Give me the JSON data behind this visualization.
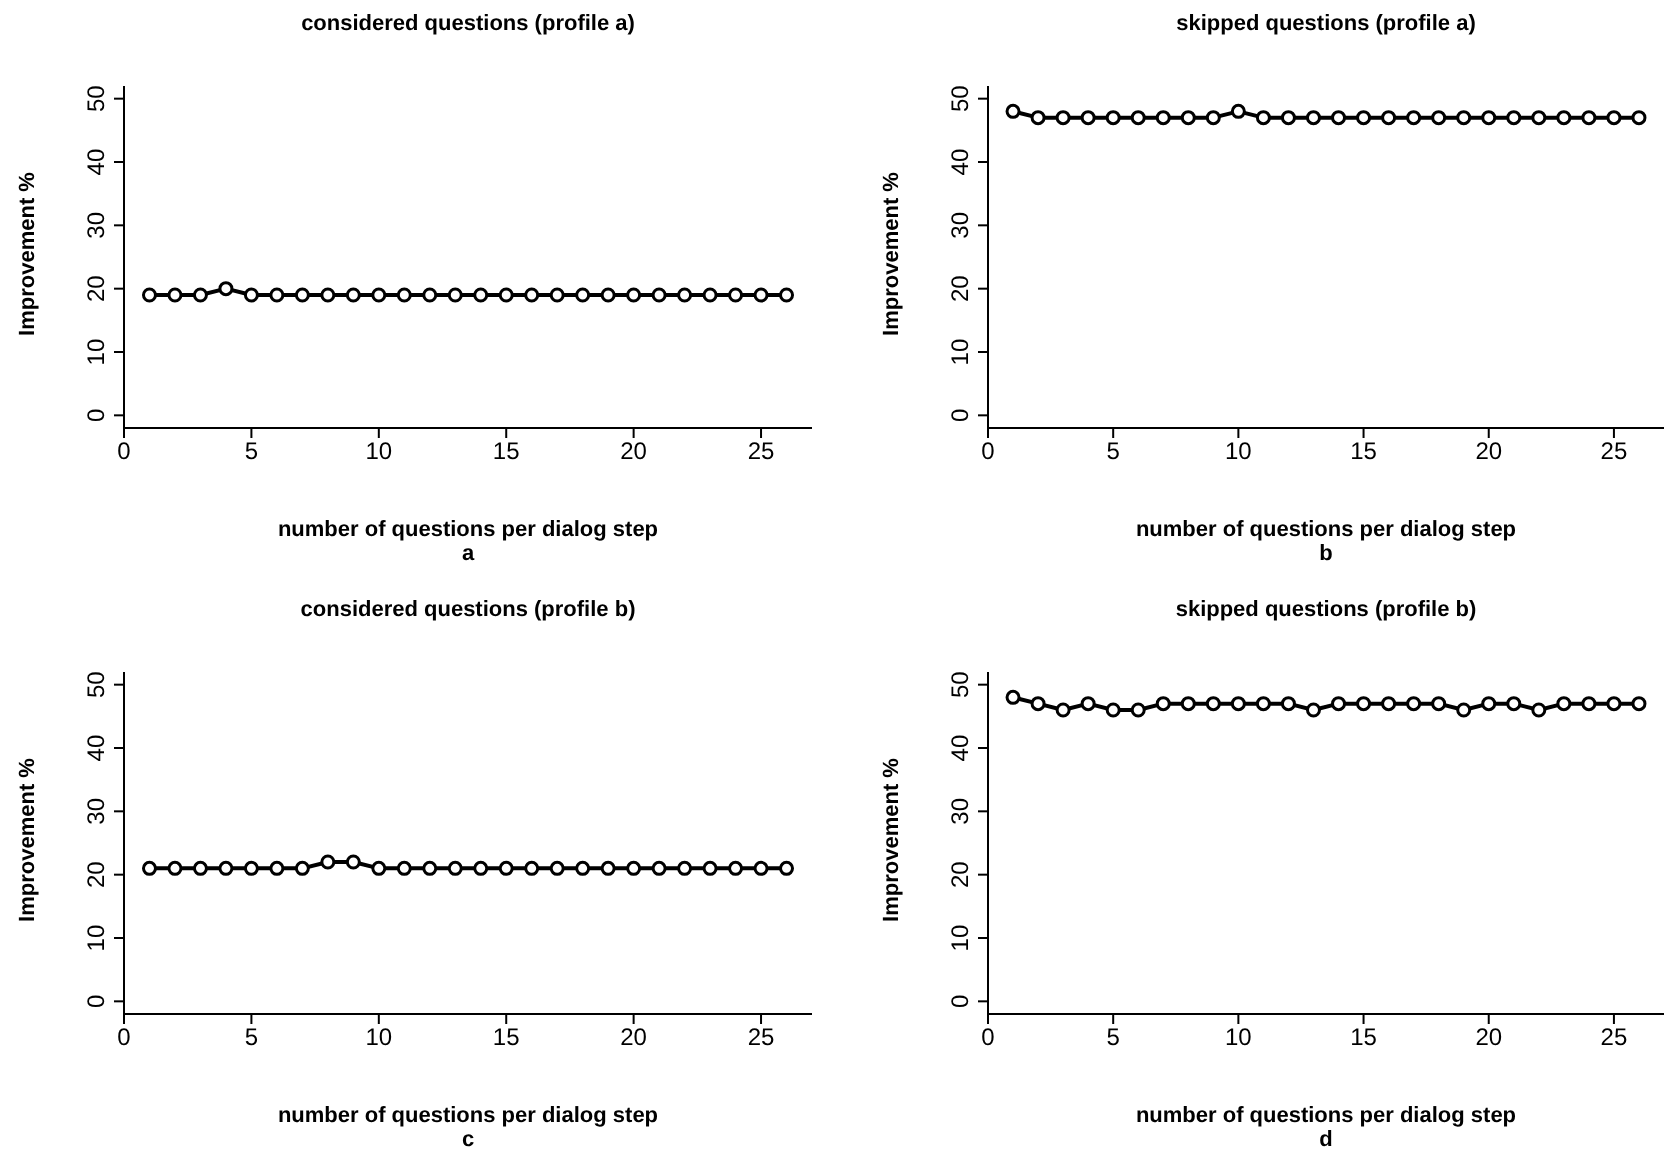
{
  "chart_data": [
    {
      "type": "line",
      "title": "considered questions (profile a)",
      "xlabel": "number of questions per dialog step",
      "ylabel": "Improvement %",
      "annotations": [
        "a"
      ],
      "x": [
        1,
        2,
        3,
        4,
        5,
        6,
        7,
        8,
        9,
        10,
        11,
        12,
        13,
        14,
        15,
        16,
        17,
        18,
        19,
        20,
        21,
        22,
        23,
        24,
        25,
        26
      ],
      "series": [
        {
          "color": "#000000",
          "values": [
            19,
            19,
            19,
            20,
            19,
            19,
            19,
            19,
            19,
            19,
            19,
            19,
            19,
            19,
            19,
            19,
            19,
            19,
            19,
            19,
            19,
            19,
            19,
            19,
            19,
            19
          ]
        }
      ],
      "xlim": [
        0,
        27
      ],
      "ylim": [
        -2,
        52
      ],
      "xticks": [
        0,
        5,
        10,
        15,
        20,
        25
      ],
      "yticks": [
        0,
        10,
        20,
        30,
        40,
        50
      ],
      "marker": "circle",
      "line_style": "solid"
    },
    {
      "type": "line",
      "title": "skipped questions (profile a)",
      "xlabel": "number of questions per dialog step",
      "ylabel": "Improvement %",
      "annotations": [
        "b"
      ],
      "x": [
        1,
        2,
        3,
        4,
        5,
        6,
        7,
        8,
        9,
        10,
        11,
        12,
        13,
        14,
        15,
        16,
        17,
        18,
        19,
        20,
        21,
        22,
        23,
        24,
        25,
        26
      ],
      "series": [
        {
          "color": "#000000",
          "values": [
            48,
            47,
            47,
            47,
            47,
            47,
            47,
            47,
            47,
            48,
            47,
            47,
            47,
            47,
            47,
            47,
            47,
            47,
            47,
            47,
            47,
            47,
            47,
            47,
            47,
            47
          ]
        }
      ],
      "xlim": [
        0,
        27
      ],
      "ylim": [
        -2,
        52
      ],
      "xticks": [
        0,
        5,
        10,
        15,
        20,
        25
      ],
      "yticks": [
        0,
        10,
        20,
        30,
        40,
        50
      ],
      "marker": "circle",
      "line_style": "solid"
    },
    {
      "type": "line",
      "title": "considered questions (profile b)",
      "xlabel": "number of questions per dialog step",
      "ylabel": "Improvement %",
      "annotations": [
        "c"
      ],
      "x": [
        1,
        2,
        3,
        4,
        5,
        6,
        7,
        8,
        9,
        10,
        11,
        12,
        13,
        14,
        15,
        16,
        17,
        18,
        19,
        20,
        21,
        22,
        23,
        24,
        25,
        26
      ],
      "series": [
        {
          "color": "#000000",
          "values": [
            21,
            21,
            21,
            21,
            21,
            21,
            21,
            22,
            22,
            21,
            21,
            21,
            21,
            21,
            21,
            21,
            21,
            21,
            21,
            21,
            21,
            21,
            21,
            21,
            21,
            21
          ]
        }
      ],
      "xlim": [
        0,
        27
      ],
      "ylim": [
        -2,
        52
      ],
      "xticks": [
        0,
        5,
        10,
        15,
        20,
        25
      ],
      "yticks": [
        0,
        10,
        20,
        30,
        40,
        50
      ],
      "marker": "circle",
      "line_style": "solid"
    },
    {
      "type": "line",
      "title": "skipped questions (profile b)",
      "xlabel": "number of questions per dialog step",
      "ylabel": "Improvement %",
      "annotations": [
        "d"
      ],
      "x": [
        1,
        2,
        3,
        4,
        5,
        6,
        7,
        8,
        9,
        10,
        11,
        12,
        13,
        14,
        15,
        16,
        17,
        18,
        19,
        20,
        21,
        22,
        23,
        24,
        25,
        26
      ],
      "series": [
        {
          "color": "#000000",
          "values": [
            48,
            47,
            46,
            47,
            46,
            46,
            47,
            47,
            47,
            47,
            47,
            47,
            46,
            47,
            47,
            47,
            47,
            47,
            46,
            47,
            47,
            46,
            47,
            47,
            47,
            47
          ]
        }
      ],
      "xlim": [
        0,
        27
      ],
      "ylim": [
        -2,
        52
      ],
      "xticks": [
        0,
        5,
        10,
        15,
        20,
        25
      ],
      "yticks": [
        0,
        10,
        20,
        30,
        40,
        50
      ],
      "marker": "circle",
      "line_style": "solid"
    }
  ]
}
